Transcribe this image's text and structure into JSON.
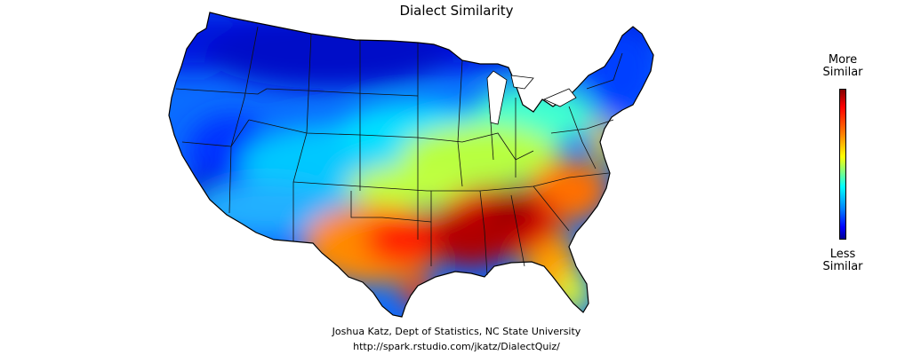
{
  "title": "Dialect Similarity",
  "legend": {
    "top_line1": "More",
    "top_line2": "Similar",
    "bottom_line1": "Less",
    "bottom_line2": "Similar",
    "colors_high_to_low": [
      "#7f0000",
      "#ff0000",
      "#ff8000",
      "#ffff00",
      "#80ff80",
      "#00ffff",
      "#0080ff",
      "#0000ff",
      "#00008f"
    ]
  },
  "credits": {
    "author": "Joshua Katz, Dept of Statistics, NC State University",
    "url": "http://spark.rstudio.com/jkatz/DialectQuiz/"
  },
  "map": {
    "region": "contiguous United States",
    "colors": {
      "low": "#0000d8",
      "mid_low": "#0a8cff",
      "mid": "#00e6ff",
      "mid_high": "#c8ff3c",
      "high": "#ff9a00",
      "very_high": "#ff2a00",
      "peak": "#b00000"
    }
  }
}
